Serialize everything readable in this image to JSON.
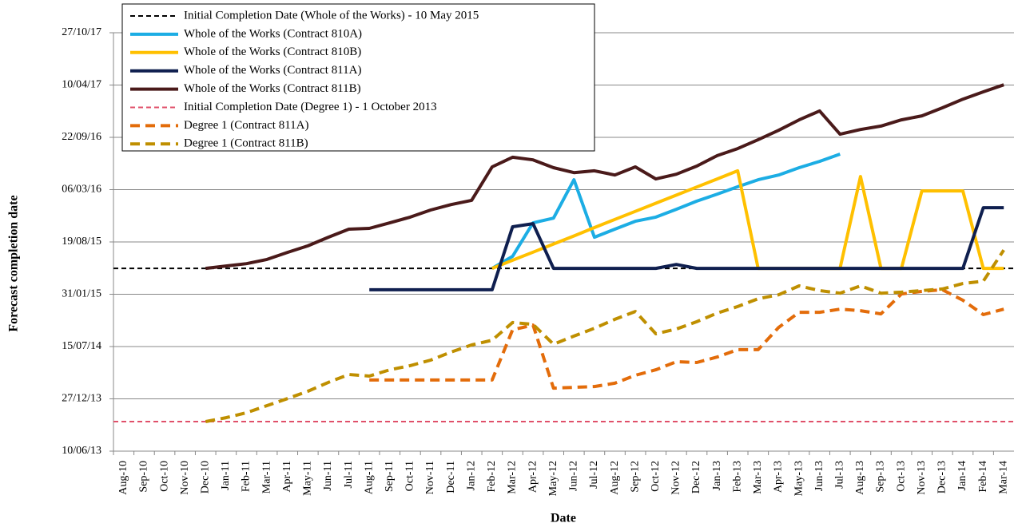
{
  "chart_data": {
    "type": "line",
    "y_axis_label": "Forecast completion date",
    "x_axis_label": "Date",
    "categories": [
      "Aug-10",
      "Sep-10",
      "Oct-10",
      "Nov-10",
      "Dec-10",
      "Jan-11",
      "Feb-11",
      "Mar-11",
      "Apr-11",
      "May-11",
      "Jun-11",
      "Jul-11",
      "Aug-11",
      "Sep-11",
      "Oct-11",
      "Nov-11",
      "Dec-11",
      "Jan-12",
      "Feb-12",
      "Mar-12",
      "Apr-12",
      "May-12",
      "Jun-12",
      "Jul-12",
      "Aug-12",
      "Sep-12",
      "Oct-12",
      "Nov-12",
      "Dec-12",
      "Jan-13",
      "Feb-13",
      "Mar-13",
      "Apr-13",
      "May-13",
      "Jun-13",
      "Jul-13",
      "Aug-13",
      "Sep-13",
      "Oct-13",
      "Nov-13",
      "Dec-13",
      "Jan-14",
      "Feb-14",
      "Mar-14"
    ],
    "ylim": [
      41435,
      43035
    ],
    "yticks": [
      {
        "value": 41435,
        "label": "10/06/13"
      },
      {
        "value": 41635,
        "label": "27/12/13"
      },
      {
        "value": 41835,
        "label": "15/07/14"
      },
      {
        "value": 42035,
        "label": "31/01/15"
      },
      {
        "value": 42235,
        "label": "19/08/15"
      },
      {
        "value": 42435,
        "label": "06/03/16"
      },
      {
        "value": 42635,
        "label": "22/09/16"
      },
      {
        "value": 42835,
        "label": "10/04/17"
      },
      {
        "value": 43035,
        "label": "27/10/17"
      }
    ],
    "grid": true,
    "series": [
      {
        "name": "Initial Completion Date (Whole of the Works) - 10 May 2015",
        "color": "#000000",
        "dashed": true,
        "value": 42134
      },
      {
        "name": "Whole of the Works (Contract 810A)",
        "color": "#1cade4",
        "values": [
          null,
          null,
          null,
          null,
          null,
          null,
          null,
          null,
          null,
          null,
          null,
          null,
          null,
          null,
          null,
          null,
          null,
          null,
          42134,
          42180,
          42308,
          42326,
          42473,
          42253,
          42284,
          42314,
          42330,
          42360,
          42391,
          42418,
          42446,
          42473,
          42491,
          42519,
          42543,
          42571,
          null,
          null,
          null,
          null,
          null,
          null,
          null,
          null
        ]
      },
      {
        "name": "Whole of the Works (Contract 810B)",
        "color": "#ffc000",
        "values": [
          null,
          null,
          null,
          null,
          null,
          null,
          null,
          null,
          null,
          null,
          null,
          null,
          null,
          null,
          null,
          null,
          null,
          null,
          42134,
          42165,
          42196,
          42227,
          42258,
          42290,
          42321,
          42352,
          42383,
          42414,
          42445,
          42476,
          42507,
          42134,
          42134,
          42134,
          42134,
          42134,
          42485,
          42134,
          42134,
          42430,
          42430,
          42430,
          42134,
          42134
        ]
      },
      {
        "name": "Whole of the Works (Contract 811A)",
        "color": "#0f1f4f",
        "values": [
          null,
          null,
          null,
          null,
          null,
          null,
          null,
          null,
          null,
          null,
          null,
          null,
          42052,
          42052,
          42052,
          42052,
          42052,
          42052,
          42052,
          42293,
          42305,
          42134,
          42134,
          42134,
          42134,
          42134,
          42134,
          42149,
          42134,
          42134,
          42134,
          42134,
          42134,
          42134,
          42134,
          42134,
          42134,
          42134,
          42134,
          42134,
          42134,
          42134,
          42366,
          42366
        ]
      },
      {
        "name": "Whole of the Works (Contract 811B)",
        "color": "#4a1a1a",
        "values": [
          null,
          null,
          null,
          null,
          42134,
          42143,
          42152,
          42168,
          42195,
          42220,
          42253,
          42284,
          42287,
          42308,
          42330,
          42357,
          42378,
          42394,
          42522,
          42559,
          42549,
          42519,
          42500,
          42507,
          42491,
          42522,
          42476,
          42494,
          42525,
          42565,
          42592,
          42626,
          42662,
          42702,
          42736,
          42647,
          42665,
          42678,
          42702,
          42717,
          42748,
          42781,
          42809,
          42836
        ]
      },
      {
        "name": "Initial Completion Date (Degree 1) - 1 October 2013",
        "color": "#e0506a",
        "dashed": true,
        "value": 41548
      },
      {
        "name": "Degree 1 (Contract 811A)",
        "color": "#e36c0a",
        "dashed": true,
        "values": [
          null,
          null,
          null,
          null,
          null,
          null,
          null,
          null,
          null,
          null,
          null,
          null,
          41707,
          41707,
          41707,
          41707,
          41707,
          41707,
          41707,
          41899,
          41917,
          41676,
          41679,
          41682,
          41695,
          41725,
          41746,
          41777,
          41774,
          41795,
          41823,
          41823,
          41908,
          41966,
          41966,
          41978,
          41972,
          41960,
          42036,
          42046,
          42052,
          42012,
          41957,
          41978
        ]
      },
      {
        "name": "Degree 1 (Contract 811B)",
        "color": "#bf8f00",
        "dashed": true,
        "values": [
          null,
          null,
          null,
          null,
          41548,
          41563,
          41582,
          41609,
          41636,
          41664,
          41698,
          41728,
          41722,
          41746,
          41762,
          41783,
          41814,
          41841,
          41859,
          41927,
          41920,
          41844,
          41875,
          41905,
          41939,
          41969,
          41884,
          41902,
          41930,
          41963,
          41988,
          42018,
          42033,
          42067,
          42049,
          42039,
          42067,
          42039,
          42043,
          42049,
          42055,
          42076,
          42085,
          42204
        ]
      }
    ]
  }
}
